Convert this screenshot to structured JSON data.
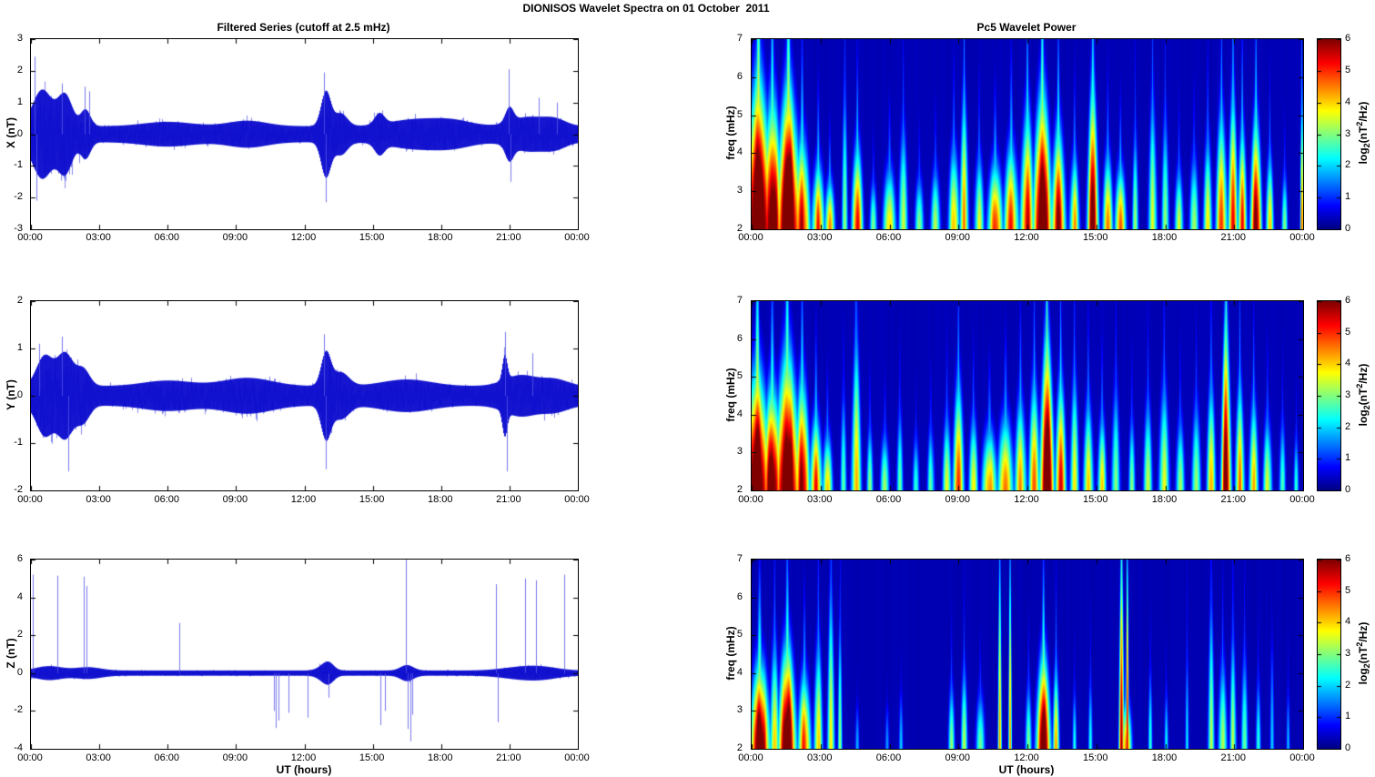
{
  "figure_title": "DIONISOS Wavelet Spectra on 01 October  2011",
  "left_column": {
    "title": "Filtered Series (cutoff at 2.5 mHz)",
    "xlabel": "UT (hours)",
    "x_ticks": [
      "00:00",
      "03:00",
      "06:00",
      "09:00",
      "12:00",
      "15:00",
      "18:00",
      "21:00",
      "00:00"
    ],
    "panels": [
      {
        "ylabel": "X (nT)",
        "ylim": [
          -3,
          3
        ],
        "yticks": [
          3,
          2,
          1,
          0,
          -1,
          -2,
          -3
        ]
      },
      {
        "ylabel": "Y (nT)",
        "ylim": [
          -2,
          2
        ],
        "yticks": [
          2,
          1,
          0,
          -1,
          -2
        ]
      },
      {
        "ylabel": "Z (nT)",
        "ylim": [
          -4,
          6
        ],
        "yticks": [
          6,
          4,
          2,
          0,
          -2,
          -4
        ]
      }
    ]
  },
  "right_column": {
    "title": "Pc5 Wavelet Power",
    "xlabel": "UT (hours)",
    "ylabel": "freq (mHz)",
    "x_ticks": [
      "00:00",
      "03:00",
      "06:00",
      "09:00",
      "12:00",
      "15:00",
      "18:00",
      "21:00",
      "00:00"
    ],
    "yticks": [
      7,
      6,
      5,
      4,
      3,
      2
    ],
    "flim": [
      2,
      7
    ]
  },
  "colorbar": {
    "ticks": [
      6,
      5,
      4,
      3,
      2,
      1,
      0
    ],
    "lim": [
      0,
      6
    ],
    "label_parts": {
      "prefix": "log",
      "sub": "2",
      "mid": "(nT",
      "sup": "2",
      "suffix": "/Hz)"
    },
    "colormap": "jet",
    "min_color": "#00008f",
    "max_color": "#7f0000"
  },
  "line_color": "#1414d2",
  "chart_data": [
    {
      "type": "line",
      "panel": "X",
      "title": "Filtered Series (cutoff at 2.5 mHz)",
      "ylabel": "X (nT)",
      "xlabel": "UT (hours)",
      "xlim": [
        0,
        24
      ],
      "ylim": [
        -3,
        3
      ],
      "yticks": [
        3,
        2,
        1,
        0,
        -1,
        -2,
        -3
      ],
      "x_ticks": [
        "00:00",
        "03:00",
        "06:00",
        "09:00",
        "12:00",
        "15:00",
        "18:00",
        "21:00",
        "00:00"
      ],
      "noise_base": 0.22,
      "envelope_bursts": [
        [
          0.5,
          0.6,
          1.0
        ],
        [
          1.5,
          0.45,
          0.85
        ],
        [
          2.4,
          0.3,
          0.45
        ],
        [
          6.0,
          1.5,
          0.12
        ],
        [
          9.5,
          1.2,
          0.15
        ],
        [
          12.95,
          0.3,
          0.95
        ],
        [
          13.6,
          0.4,
          0.35
        ],
        [
          15.3,
          0.3,
          0.3
        ],
        [
          16.8,
          1.5,
          0.18
        ],
        [
          18.5,
          1.2,
          0.15
        ],
        [
          21.0,
          0.25,
          0.4
        ],
        [
          21.8,
          1.0,
          0.25
        ],
        [
          23.0,
          0.7,
          0.18
        ]
      ],
      "spikes": [
        [
          0.15,
          2.45
        ],
        [
          0.25,
          -2.1
        ],
        [
          1.35,
          1.6
        ],
        [
          2.35,
          1.5
        ],
        [
          2.55,
          1.35
        ],
        [
          12.85,
          1.95
        ],
        [
          12.95,
          -2.15
        ],
        [
          20.95,
          2.05
        ],
        [
          21.05,
          -1.5
        ],
        [
          22.3,
          1.15
        ],
        [
          23.1,
          1.0
        ]
      ]
    },
    {
      "type": "line",
      "panel": "Y",
      "ylabel": "Y (nT)",
      "xlabel": "UT (hours)",
      "xlim": [
        0,
        24
      ],
      "ylim": [
        -2,
        2
      ],
      "yticks": [
        2,
        1,
        0,
        -1,
        -2
      ],
      "x_ticks": [
        "00:00",
        "03:00",
        "06:00",
        "09:00",
        "12:00",
        "15:00",
        "18:00",
        "21:00",
        "00:00"
      ],
      "noise_base": 0.18,
      "envelope_bursts": [
        [
          0.6,
          0.5,
          0.55
        ],
        [
          1.5,
          0.5,
          0.6
        ],
        [
          2.3,
          0.4,
          0.3
        ],
        [
          6.0,
          1.5,
          0.1
        ],
        [
          9.5,
          1.5,
          0.15
        ],
        [
          12.95,
          0.3,
          0.6
        ],
        [
          13.6,
          0.5,
          0.25
        ],
        [
          16.5,
          1.5,
          0.12
        ],
        [
          20.8,
          0.15,
          0.45
        ],
        [
          21.5,
          1.0,
          0.2
        ],
        [
          23.0,
          0.8,
          0.12
        ]
      ],
      "spikes": [
        [
          0.35,
          1.1
        ],
        [
          1.35,
          1.25
        ],
        [
          1.65,
          -1.6
        ],
        [
          12.85,
          1.3
        ],
        [
          12.95,
          -1.55
        ],
        [
          20.8,
          1.35
        ],
        [
          20.9,
          -1.6
        ],
        [
          22.0,
          0.9
        ]
      ]
    },
    {
      "type": "line",
      "panel": "Z",
      "ylabel": "Z (nT)",
      "xlabel": "UT (hours)",
      "xlim": [
        0,
        24
      ],
      "ylim": [
        -4,
        6
      ],
      "yticks": [
        6,
        4,
        2,
        0,
        -2,
        -4
      ],
      "x_ticks": [
        "00:00",
        "03:00",
        "06:00",
        "09:00",
        "12:00",
        "15:00",
        "18:00",
        "21:00",
        "00:00"
      ],
      "noise_base": 0.12,
      "envelope_bursts": [
        [
          0.8,
          0.8,
          0.2
        ],
        [
          2.5,
          0.8,
          0.15
        ],
        [
          12.9,
          0.4,
          0.25
        ],
        [
          13.1,
          0.3,
          0.2
        ],
        [
          16.5,
          0.4,
          0.25
        ],
        [
          21.5,
          1.2,
          0.15
        ],
        [
          22.5,
          1.0,
          0.12
        ]
      ],
      "spikes": [
        [
          0.07,
          5.2
        ],
        [
          1.15,
          5.15
        ],
        [
          2.3,
          5.1
        ],
        [
          2.45,
          4.6
        ],
        [
          6.5,
          2.65
        ],
        [
          10.65,
          -2.0
        ],
        [
          10.75,
          -2.9
        ],
        [
          10.85,
          -2.5
        ],
        [
          11.3,
          -2.1
        ],
        [
          12.15,
          -2.35
        ],
        [
          13.05,
          -1.3
        ],
        [
          15.35,
          -2.75
        ],
        [
          15.55,
          -2.0
        ],
        [
          16.45,
          6.0
        ],
        [
          16.55,
          -2.95
        ],
        [
          16.65,
          -3.6
        ],
        [
          16.75,
          -2.2
        ],
        [
          20.4,
          4.7
        ],
        [
          20.5,
          -2.6
        ],
        [
          21.7,
          5.0
        ],
        [
          22.15,
          4.9
        ],
        [
          23.4,
          5.2
        ]
      ]
    },
    {
      "type": "heatmap",
      "panel": "X",
      "title": "Pc5 Wavelet Power",
      "ylabel": "freq (mHz)",
      "xlabel": "UT (hours)",
      "zlabel": "log2(nT^2/Hz)",
      "xlim": [
        0,
        24
      ],
      "flim": [
        2,
        7
      ],
      "zlim": [
        0,
        6
      ],
      "colormap": "jet",
      "background_level": 0.32,
      "events": [
        [
          0.3,
          0.55,
          3.5,
          8
        ],
        [
          0.9,
          0.4,
          3,
          7
        ],
        [
          1.6,
          0.5,
          3.2,
          8
        ],
        [
          2.2,
          0.3,
          2.2,
          6
        ],
        [
          2.9,
          0.25,
          1.6,
          5
        ],
        [
          3.4,
          0.2,
          1.2,
          4.5
        ],
        [
          4.05,
          0.12,
          3.5,
          3.2
        ],
        [
          4.6,
          0.22,
          2,
          5.2
        ],
        [
          5.3,
          0.15,
          1.2,
          3
        ],
        [
          6.0,
          0.25,
          1.5,
          4.2
        ],
        [
          6.6,
          0.18,
          2.5,
          3.4
        ],
        [
          7.3,
          0.18,
          1.3,
          3
        ],
        [
          8.0,
          0.2,
          1.5,
          3.2
        ],
        [
          8.8,
          0.22,
          2,
          4.2
        ],
        [
          9.25,
          0.18,
          3.2,
          4.6
        ],
        [
          9.9,
          0.2,
          1.8,
          3.6
        ],
        [
          10.6,
          0.3,
          1.6,
          5
        ],
        [
          11.3,
          0.3,
          2,
          5.2
        ],
        [
          12.0,
          0.28,
          2.8,
          5.6
        ],
        [
          12.65,
          0.38,
          3.2,
          7.5
        ],
        [
          13.35,
          0.28,
          2.4,
          6.2
        ],
        [
          14.05,
          0.2,
          1.8,
          4.2
        ],
        [
          14.85,
          0.22,
          3.4,
          6.4
        ],
        [
          15.5,
          0.2,
          1.8,
          4.6
        ],
        [
          16.05,
          0.22,
          1.5,
          4.8
        ],
        [
          16.7,
          0.12,
          2.4,
          3.2
        ],
        [
          17.45,
          0.18,
          3.2,
          3.4
        ],
        [
          18.0,
          0.15,
          2.8,
          3.2
        ],
        [
          18.6,
          0.18,
          1.5,
          3.4
        ],
        [
          19.25,
          0.18,
          1.8,
          3.3
        ],
        [
          19.85,
          0.18,
          2.2,
          4
        ],
        [
          20.45,
          0.22,
          2.8,
          5.2
        ],
        [
          20.95,
          0.18,
          3.2,
          5.6
        ],
        [
          21.35,
          0.18,
          2.4,
          5
        ],
        [
          21.95,
          0.22,
          2.6,
          6.2
        ],
        [
          22.55,
          0.15,
          1.8,
          4.2
        ],
        [
          23.2,
          0.12,
          1.4,
          3
        ],
        [
          23.95,
          0.06,
          3.2,
          4.6
        ]
      ]
    },
    {
      "type": "heatmap",
      "panel": "Y",
      "ylabel": "freq (mHz)",
      "xlabel": "UT (hours)",
      "zlabel": "log2(nT^2/Hz)",
      "xlim": [
        0,
        24
      ],
      "flim": [
        2,
        7
      ],
      "zlim": [
        0,
        6
      ],
      "colormap": "jet",
      "background_level": 0.32,
      "events": [
        [
          0.25,
          0.5,
          2.8,
          8
        ],
        [
          0.9,
          0.4,
          2.4,
          7
        ],
        [
          1.55,
          0.5,
          3.2,
          8
        ],
        [
          2.2,
          0.3,
          2.6,
          6.2
        ],
        [
          2.8,
          0.25,
          1.8,
          5.2
        ],
        [
          3.3,
          0.2,
          1.4,
          4.2
        ],
        [
          4.0,
          0.12,
          2.4,
          3
        ],
        [
          4.55,
          0.2,
          3.8,
          4.2
        ],
        [
          5.15,
          0.13,
          1.6,
          3
        ],
        [
          5.8,
          0.18,
          1.4,
          3.2
        ],
        [
          6.45,
          0.13,
          2,
          3
        ],
        [
          7.15,
          0.13,
          1.4,
          2.8
        ],
        [
          7.8,
          0.15,
          1.6,
          2.8
        ],
        [
          8.5,
          0.18,
          1.8,
          3.4
        ],
        [
          9.0,
          0.22,
          2.6,
          5
        ],
        [
          9.65,
          0.18,
          1.8,
          4
        ],
        [
          10.35,
          0.3,
          1.5,
          4.6
        ],
        [
          11.05,
          0.32,
          1.8,
          4.8
        ],
        [
          11.7,
          0.25,
          2.2,
          4.2
        ],
        [
          12.3,
          0.22,
          2.6,
          4.6
        ],
        [
          12.85,
          0.28,
          3.6,
          7.5
        ],
        [
          13.45,
          0.22,
          2.6,
          5.2
        ],
        [
          14.05,
          0.18,
          2.8,
          3.8
        ],
        [
          14.65,
          0.2,
          2.2,
          4.2
        ],
        [
          15.25,
          0.18,
          1.8,
          3.6
        ],
        [
          15.85,
          0.18,
          2.6,
          3.2
        ],
        [
          16.55,
          0.13,
          1.8,
          3
        ],
        [
          17.25,
          0.18,
          2.2,
          3.4
        ],
        [
          17.95,
          0.22,
          2.6,
          3.6
        ],
        [
          18.65,
          0.18,
          1.8,
          3.2
        ],
        [
          19.35,
          0.18,
          2.2,
          3.4
        ],
        [
          20.0,
          0.18,
          2.6,
          4
        ],
        [
          20.65,
          0.2,
          4.2,
          6.6
        ],
        [
          21.25,
          0.18,
          2.6,
          4.6
        ],
        [
          21.85,
          0.18,
          2.2,
          4.4
        ],
        [
          22.45,
          0.18,
          1.8,
          3.6
        ],
        [
          23.1,
          0.13,
          1.8,
          2.8
        ],
        [
          23.7,
          0.1,
          1.4,
          2.5
        ]
      ]
    },
    {
      "type": "heatmap",
      "panel": "Z",
      "ylabel": "freq (mHz)",
      "xlabel": "UT (hours)",
      "zlabel": "log2(nT^2/Hz)",
      "xlim": [
        0,
        24
      ],
      "flim": [
        2,
        7
      ],
      "zlim": [
        0,
        6
      ],
      "colormap": "jet",
      "background_level": 0.3,
      "events": [
        [
          0.35,
          0.4,
          2,
          7
        ],
        [
          1.0,
          0.18,
          2.6,
          4.2
        ],
        [
          1.55,
          0.35,
          2.4,
          7
        ],
        [
          2.3,
          0.25,
          1.8,
          5.4
        ],
        [
          2.9,
          0.18,
          2.6,
          4
        ],
        [
          3.45,
          0.15,
          4,
          3.8
        ],
        [
          3.85,
          0.08,
          3.2,
          3.2
        ],
        [
          4.6,
          0.08,
          1.2,
          2
        ],
        [
          5.9,
          0.08,
          1.2,
          1.8
        ],
        [
          6.5,
          0.08,
          1.5,
          2
        ],
        [
          8.7,
          0.13,
          1.6,
          3
        ],
        [
          9.25,
          0.13,
          2,
          3.2
        ],
        [
          9.95,
          0.18,
          1.4,
          3
        ],
        [
          10.8,
          0.07,
          5,
          4.8
        ],
        [
          11.25,
          0.06,
          5,
          4.6
        ],
        [
          12.05,
          0.13,
          1.6,
          3.2
        ],
        [
          12.7,
          0.28,
          2.2,
          7
        ],
        [
          13.25,
          0.13,
          2,
          4
        ],
        [
          14.05,
          0.08,
          1.5,
          2.4
        ],
        [
          14.75,
          0.08,
          1.8,
          2.6
        ],
        [
          16.1,
          0.1,
          5,
          5.4
        ],
        [
          16.35,
          0.05,
          5,
          5.8
        ],
        [
          16.3,
          0.22,
          1.2,
          4.6
        ],
        [
          17.35,
          0.08,
          2,
          2.6
        ],
        [
          18.05,
          0.08,
          1.5,
          2.4
        ],
        [
          18.95,
          0.07,
          2.6,
          2.2
        ],
        [
          20.0,
          0.13,
          3.6,
          3.4
        ],
        [
          20.5,
          0.18,
          2.2,
          3.4
        ],
        [
          20.95,
          0.13,
          2.8,
          3.2
        ],
        [
          21.45,
          0.13,
          2.4,
          3
        ],
        [
          22.05,
          0.1,
          1.8,
          2.5
        ],
        [
          22.65,
          0.08,
          2.8,
          2.2
        ],
        [
          23.35,
          0.07,
          1.6,
          2
        ]
      ]
    }
  ]
}
